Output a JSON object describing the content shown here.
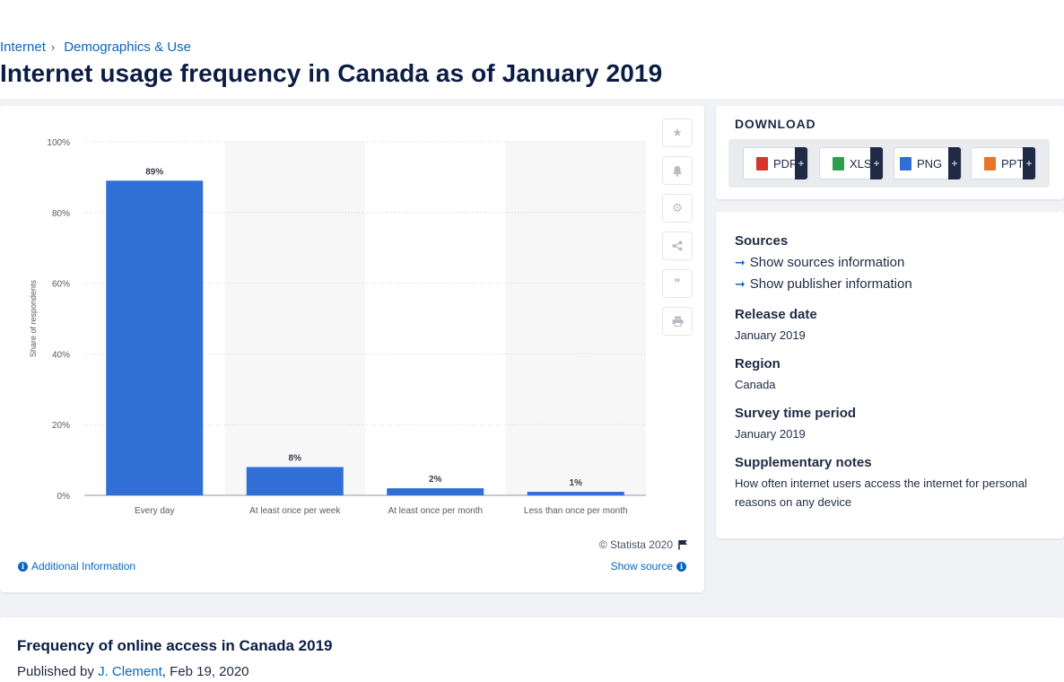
{
  "breadcrumb": {
    "items": [
      "Internet",
      "Demographics & Use"
    ]
  },
  "page": {
    "title": "Internet usage frequency in Canada as of January 2019"
  },
  "chart_data": {
    "type": "bar",
    "title": "",
    "xlabel": "",
    "ylabel": "Share of respondents",
    "categories": [
      "Every day",
      "At least once per week",
      "At least once per month",
      "Less than once per month"
    ],
    "values": [
      89,
      8,
      2,
      1
    ],
    "value_labels": [
      "89%",
      "8%",
      "2%",
      "1%"
    ],
    "ylim": [
      0,
      100
    ],
    "yticks": [
      "0%",
      "20%",
      "40%",
      "60%",
      "80%",
      "100%"
    ],
    "grid": true,
    "bar_color": "#2f6fd6"
  },
  "chart_footer": {
    "credit": "© Statista 2020",
    "additional_info": "Additional Information",
    "show_source": "Show source"
  },
  "download": {
    "title": "DOWNLOAD",
    "buttons": [
      {
        "label": "PDF",
        "icon": "pdf-file-icon",
        "color": "#d9342b"
      },
      {
        "label": "XLS",
        "icon": "xls-file-icon",
        "color": "#2e9e4f"
      },
      {
        "label": "PNG",
        "icon": "png-file-icon",
        "color": "#2f6fd6"
      },
      {
        "label": "PPT",
        "icon": "ppt-file-icon",
        "color": "#e5762a"
      }
    ],
    "plus": "+"
  },
  "meta": {
    "sources_heading": "Sources",
    "show_sources": "Show sources information",
    "show_publisher": "Show publisher information",
    "release_heading": "Release date",
    "release_value": "January 2019",
    "region_heading": "Region",
    "region_value": "Canada",
    "survey_heading": "Survey time period",
    "survey_value": "January 2019",
    "notes_heading": "Supplementary notes",
    "notes_value": "How often internet users access the internet for personal reasons on any device"
  },
  "bottom": {
    "subtitle": "Frequency of online access in Canada 2019",
    "published_prefix": "Published by ",
    "author": "J. Clement",
    "date": ", Feb 19, 2020"
  }
}
